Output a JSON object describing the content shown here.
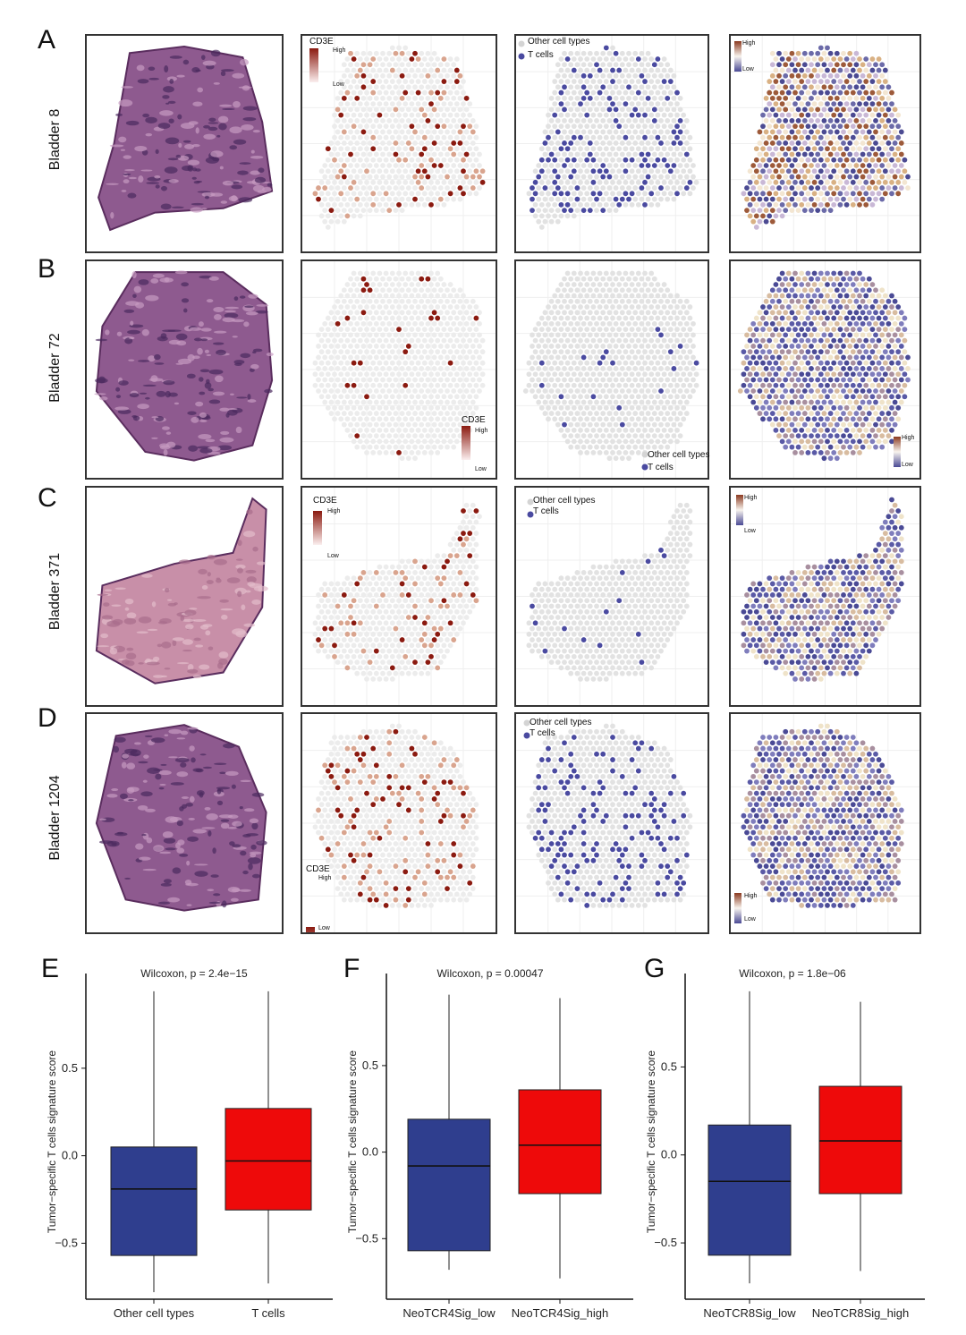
{
  "rows": [
    {
      "letter": "A",
      "label": "Bladder 8",
      "legend_gene": "CD3E",
      "legend_high": "High",
      "legend_low": "Low",
      "cell_legend": [
        "Other cell types",
        "T cells"
      ],
      "sig_high": "High",
      "sig_low": "Low"
    },
    {
      "letter": "B",
      "label": "Bladder 72",
      "legend_gene": "CD3E",
      "legend_high": "High",
      "legend_low": "Low",
      "cell_legend": [
        "Other cell types",
        "T cells"
      ],
      "sig_high": "High",
      "sig_low": "Low"
    },
    {
      "letter": "C",
      "label": "Bladder 371",
      "legend_gene": "CD3E",
      "legend_high": "High",
      "legend_low": "Low",
      "cell_legend": [
        "Other cell types",
        "T cells"
      ],
      "sig_high": "High",
      "sig_low": "Low"
    },
    {
      "letter": "D",
      "label": "Bladder 1204",
      "legend_gene": "CD3E",
      "legend_high": "High",
      "legend_low": "Low",
      "cell_legend": [
        "Other cell types",
        "T cells"
      ],
      "sig_high": "High",
      "sig_low": "Low"
    }
  ],
  "colors": {
    "tcell": "#4a4aa0",
    "other": "#e2e2e2",
    "cd3e_high": "#8b1a10",
    "box_low": "#2f3e8e",
    "box_high": "#ee0a0a"
  },
  "chart_data": [
    {
      "letter": "E",
      "type": "box",
      "title": "Wilcoxon, p = 2.4e−15",
      "ylabel": "Tumor−specific T cells signature score",
      "categories": [
        "Other cell types",
        "T cells"
      ],
      "yticks": [
        "0.5",
        "0.0",
        "−0.5"
      ],
      "ytick_values": [
        0.5,
        0.0,
        -0.5
      ],
      "ylim": [
        -0.82,
        0.98
      ],
      "boxes": [
        {
          "min": -0.78,
          "q1": -0.57,
          "median": -0.19,
          "q3": 0.05,
          "max": 0.94
        },
        {
          "min": -0.73,
          "q1": -0.31,
          "median": -0.03,
          "q3": 0.27,
          "max": 0.94
        }
      ]
    },
    {
      "letter": "F",
      "type": "box",
      "title": "Wilcoxon, p = 0.00047",
      "ylabel": "Tumor−specific T cells signature score",
      "categories": [
        "NeoTCR4Sig_low",
        "NeoTCR4Sig_high"
      ],
      "yticks": [
        "0.5",
        "0.0",
        "−0.5"
      ],
      "ytick_values": [
        0.5,
        0.0,
        -0.5
      ],
      "ylim": [
        -0.85,
        0.97
      ],
      "boxes": [
        {
          "min": -0.68,
          "q1": -0.57,
          "median": -0.08,
          "q3": 0.19,
          "max": 0.91
        },
        {
          "min": -0.73,
          "q1": -0.24,
          "median": 0.04,
          "q3": 0.36,
          "max": 0.89
        }
      ]
    },
    {
      "letter": "G",
      "type": "box",
      "title": "Wilcoxon, p = 1.8e−06",
      "ylabel": "Tumor−specific T cells signature score",
      "categories": [
        "NeoTCR8Sig_low",
        "NeoTCR8Sig_high"
      ],
      "yticks": [
        "0.5",
        "0.0",
        "−0.5"
      ],
      "ytick_values": [
        0.5,
        0.0,
        -0.5
      ],
      "ylim": [
        -0.82,
        0.97
      ],
      "boxes": [
        {
          "min": -0.73,
          "q1": -0.57,
          "median": -0.15,
          "q3": 0.17,
          "max": 0.93
        },
        {
          "min": -0.66,
          "q1": -0.22,
          "median": 0.08,
          "q3": 0.39,
          "max": 0.87
        }
      ]
    }
  ]
}
